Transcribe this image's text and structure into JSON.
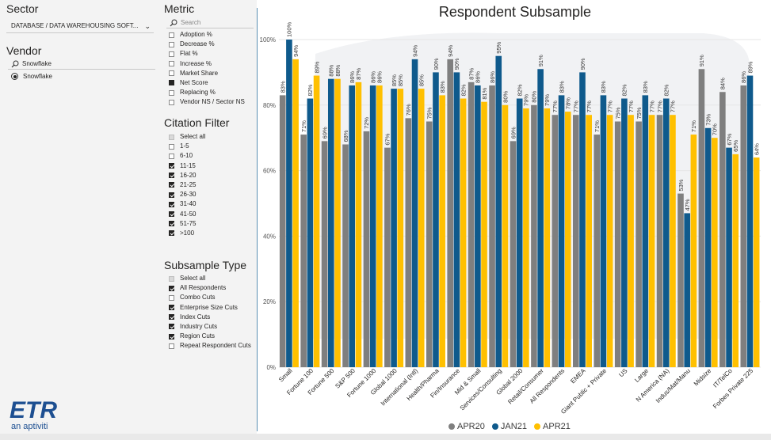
{
  "sector": {
    "title": "Sector",
    "selected": "DATABASE / DATA WAREHOUSING SOFT..."
  },
  "vendor": {
    "title": "Vendor",
    "search_value": "Snowflake",
    "option": "Snowflake"
  },
  "metric": {
    "title": "Metric",
    "search_placeholder": "Search",
    "items": [
      {
        "label": "Adoption %",
        "checked": false
      },
      {
        "label": "Decrease %",
        "checked": false
      },
      {
        "label": "Flat %",
        "checked": false
      },
      {
        "label": "Increase %",
        "checked": false
      },
      {
        "label": "Market Share",
        "checked": false
      },
      {
        "label": "Net Score",
        "checked": true
      },
      {
        "label": "Replacing %",
        "checked": false
      },
      {
        "label": "Vendor NS / Sector NS",
        "checked": false
      }
    ]
  },
  "citation_filter": {
    "title": "Citation Filter",
    "items": [
      {
        "label": "Select all",
        "state": "partial"
      },
      {
        "label": "1-5",
        "state": "off"
      },
      {
        "label": "6-10",
        "state": "off"
      },
      {
        "label": "11-15",
        "state": "on"
      },
      {
        "label": "16-20",
        "state": "on"
      },
      {
        "label": "21-25",
        "state": "on"
      },
      {
        "label": "26-30",
        "state": "on"
      },
      {
        "label": "31-40",
        "state": "on"
      },
      {
        "label": "41-50",
        "state": "on"
      },
      {
        "label": "51-75",
        "state": "on"
      },
      {
        "label": ">100",
        "state": "on"
      }
    ]
  },
  "subsample_type": {
    "title": "Subsample Type",
    "items": [
      {
        "label": "Select all",
        "state": "partial"
      },
      {
        "label": "All Respondents",
        "state": "on"
      },
      {
        "label": "Combo Cuts",
        "state": "off"
      },
      {
        "label": "Enterprise Size Cuts",
        "state": "on"
      },
      {
        "label": "Index Cuts",
        "state": "on"
      },
      {
        "label": "Industry Cuts",
        "state": "on"
      },
      {
        "label": "Region Cuts",
        "state": "on"
      },
      {
        "label": "Repeat Respondent Cuts",
        "state": "off"
      }
    ]
  },
  "logo": {
    "brand": "ETR",
    "tagline": "an aptiviti"
  },
  "chart_data": {
    "type": "bar",
    "title": "Respondent Subsample",
    "ylim": [
      0,
      100
    ],
    "yticks": [
      "0%",
      "20%",
      "40%",
      "60%",
      "80%",
      "100%"
    ],
    "categories": [
      "Small",
      "Fortune 100",
      "Fortune 500",
      "S&P 500",
      "Fortune 1000",
      "Global 1000",
      "International (Intl)",
      "Health/Pharma",
      "Fin/Insurance",
      "Mid & Small",
      "Services/Consulting",
      "Global 2000",
      "Retail/Consumer",
      "All Respondents",
      "EMEA",
      "Giant Public + Private",
      "US",
      "Large",
      "N America (NA)",
      "Indus/Mat/Manu",
      "Midsize",
      "IT/TelCo",
      "Forbes Private 225"
    ],
    "series": [
      {
        "name": "APR20",
        "color": "#7f7f7f",
        "values": [
          83,
          71,
          69,
          68,
          72,
          67,
          76,
          75,
          94,
          87,
          86,
          69,
          80,
          77,
          77,
          71,
          75,
          75,
          77,
          53,
          91,
          84,
          86
        ]
      },
      {
        "name": "JAN21",
        "color": "#0f5a8c",
        "values": [
          100,
          82,
          88,
          86,
          86,
          85,
          94,
          90,
          90,
          86,
          95,
          82,
          91,
          83,
          90,
          83,
          82,
          83,
          82,
          47,
          73,
          67,
          89
        ]
      },
      {
        "name": "APR21",
        "color": "#ffc000",
        "values": [
          94,
          89,
          88,
          87,
          86,
          85,
          85,
          83,
          82,
          81,
          80,
          79,
          79,
          78,
          77,
          77,
          77,
          77,
          77,
          71,
          70,
          65,
          64
        ]
      }
    ],
    "legend_position": "bottom"
  }
}
